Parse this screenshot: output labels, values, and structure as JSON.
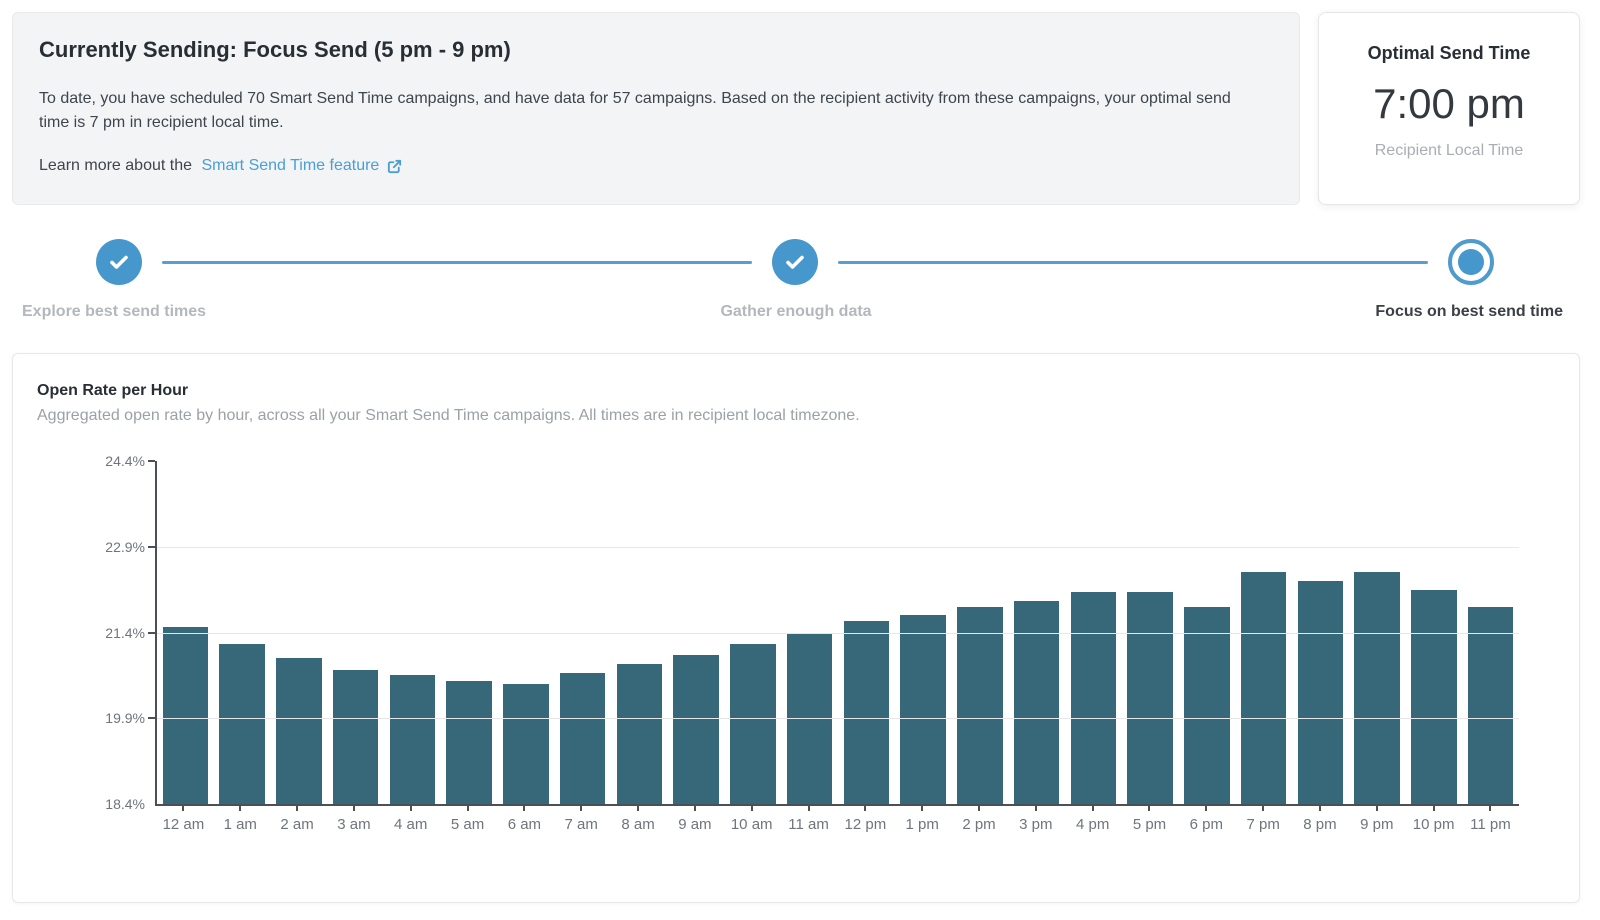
{
  "status_panel": {
    "title": "Currently Sending: Focus Send (5 pm - 9 pm)",
    "description": "To date, you have scheduled 70 Smart Send Time campaigns, and have data for 57 campaigns. Based on the recipient activity from these campaigns, your optimal send time is 7 pm in recipient local time.",
    "learn_more_prefix": "Learn more about the",
    "learn_more_link_label": "Smart Send Time feature"
  },
  "optimal_card": {
    "title": "Optimal Send Time",
    "time": "7:00 pm",
    "subtitle": "Recipient Local Time"
  },
  "stepper": {
    "steps": [
      {
        "label": "Explore best send times",
        "state": "complete"
      },
      {
        "label": "Gather enough data",
        "state": "complete"
      },
      {
        "label": "Focus on best send time",
        "state": "current"
      }
    ]
  },
  "chart": {
    "title": "Open Rate per Hour",
    "subtitle": "Aggregated open rate by hour, across all your Smart Send Time campaigns. All times are in recipient local timezone."
  },
  "chart_data": {
    "type": "bar",
    "title": "Open Rate per Hour",
    "categories": [
      "12 am",
      "1 am",
      "2 am",
      "3 am",
      "4 am",
      "5 am",
      "6 am",
      "7 am",
      "8 am",
      "9 am",
      "10 am",
      "11 am",
      "12 pm",
      "1 pm",
      "2 pm",
      "3 pm",
      "4 pm",
      "5 pm",
      "6 pm",
      "7 pm",
      "8 pm",
      "9 pm",
      "10 pm",
      "11 pm"
    ],
    "values": [
      21.5,
      21.2,
      20.95,
      20.75,
      20.65,
      20.55,
      20.5,
      20.7,
      20.85,
      21.0,
      21.2,
      21.4,
      21.6,
      21.7,
      21.85,
      21.95,
      22.1,
      22.1,
      21.85,
      22.45,
      22.3,
      22.45,
      22.15,
      21.85
    ],
    "xlabel": "",
    "ylabel": "",
    "ylim": [
      18.4,
      24.4
    ],
    "ytick_labels": [
      "24.4%",
      "22.9%",
      "21.4%",
      "19.9%",
      "18.4%"
    ],
    "grid": true,
    "legend": false,
    "bar_color": "#36687a"
  },
  "colors": {
    "accent_blue": "#4697cb",
    "link_blue": "#4a9ed4",
    "bar_teal": "#36687a",
    "panel_gray": "#f3f4f5"
  }
}
